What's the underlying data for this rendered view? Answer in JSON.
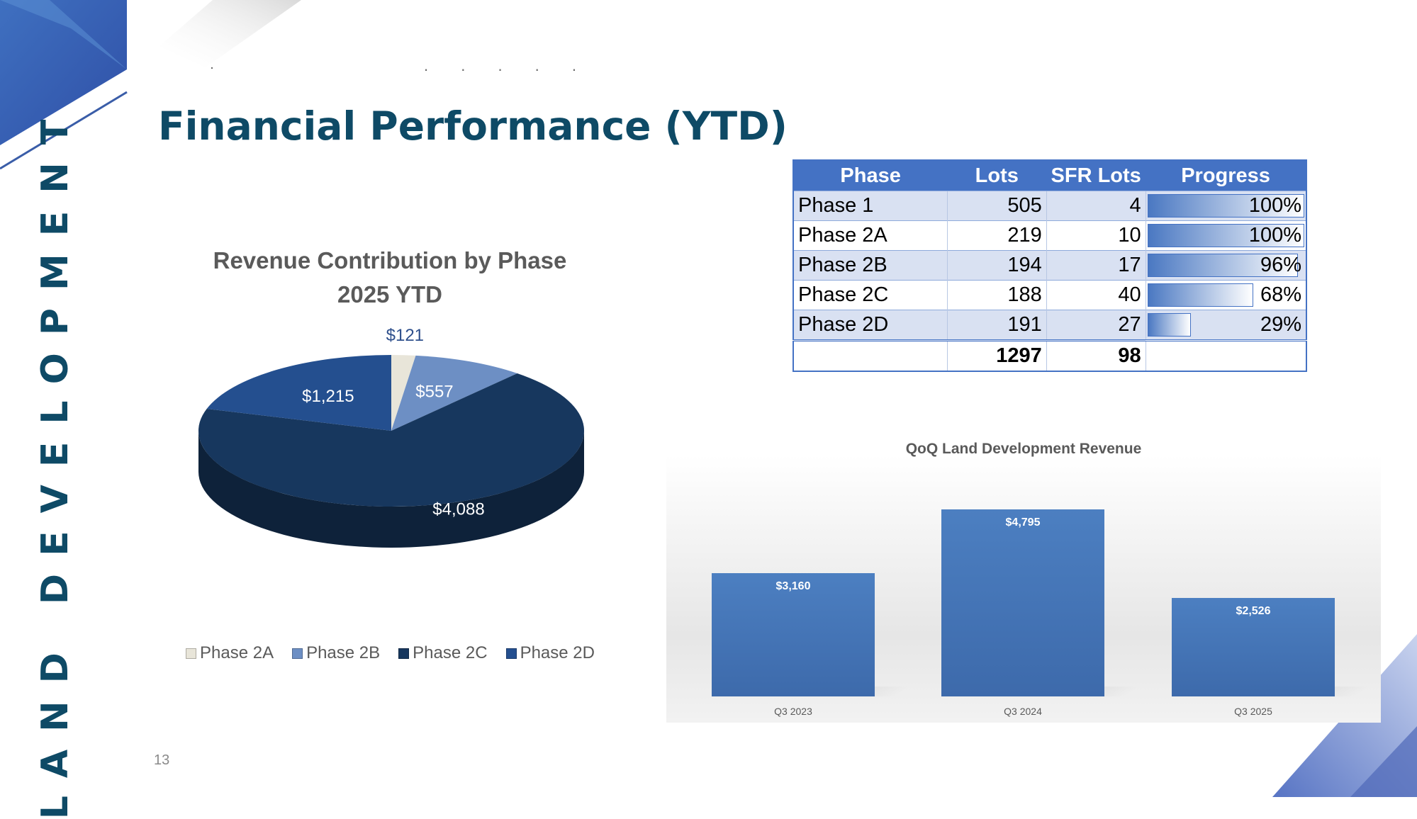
{
  "slide": {
    "vertical_title": "LAND DEVELOPMENT",
    "title": "Financial Performance (YTD)",
    "dots": ". . . . .",
    "page_number": "13",
    "colors": {
      "title": "#0e4a66",
      "accent": "#4472c4",
      "table_band": "#d9e1f2"
    }
  },
  "table": {
    "headers": [
      "Phase",
      "Lots",
      "SFR Lots",
      "Progress"
    ],
    "rows": [
      {
        "phase": "Phase 1",
        "lots": "505",
        "sfr_lots": "4",
        "progress": "100%",
        "progress_value": 100
      },
      {
        "phase": "Phase 2A",
        "lots": "219",
        "sfr_lots": "10",
        "progress": "100%",
        "progress_value": 100
      },
      {
        "phase": "Phase 2B",
        "lots": "194",
        "sfr_lots": "17",
        "progress": "96%",
        "progress_value": 96
      },
      {
        "phase": "Phase 2C",
        "lots": "188",
        "sfr_lots": "40",
        "progress": "68%",
        "progress_value": 68
      },
      {
        "phase": "Phase 2D",
        "lots": "191",
        "sfr_lots": "27",
        "progress": "29%",
        "progress_value": 29
      }
    ],
    "totals": {
      "phase": "",
      "lots": "1297",
      "sfr_lots": "98",
      "progress": ""
    }
  },
  "chart_data": [
    {
      "type": "pie",
      "title": "Revenue Contribution by Phase",
      "subtitle": "2025 YTD",
      "categories": [
        "Phase 2A",
        "Phase 2B",
        "Phase 2C",
        "Phase 2D"
      ],
      "values": [
        121,
        557,
        4088,
        1215
      ],
      "data_labels": [
        "$121",
        "$557",
        "$4,088",
        "$1,215"
      ],
      "colors": [
        "#e8e5d9",
        "#6d8fc4",
        "#17375e",
        "#244f8f"
      ],
      "legend": "bottom"
    },
    {
      "type": "bar",
      "title": "QoQ Land Development Revenue",
      "categories": [
        "Q3 2023",
        "Q3 2024",
        "Q3 2025"
      ],
      "values": [
        3160,
        4795,
        2526
      ],
      "data_labels": [
        "$3,160",
        "$4,795",
        "$2,526"
      ],
      "ylim": [
        0,
        6000
      ],
      "grid": false,
      "color": "#4a7ab9"
    }
  ]
}
